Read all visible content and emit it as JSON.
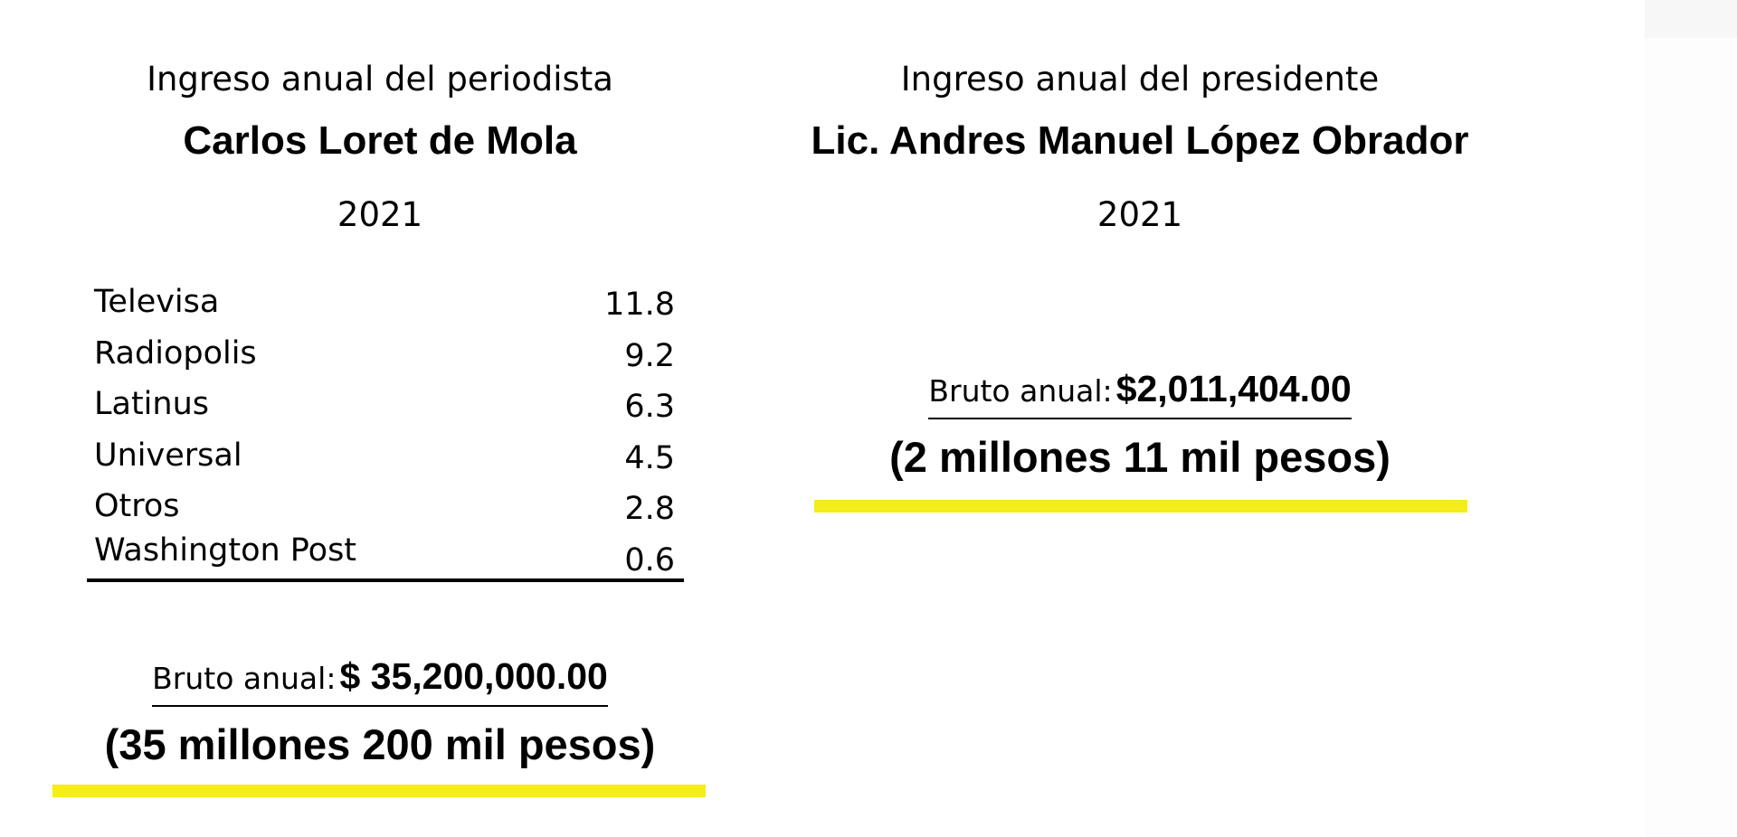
{
  "colors": {
    "highlight": "#f5ec1c",
    "text": "#000000",
    "background": "#ffffff"
  },
  "left": {
    "subtitle": "Ingreso anual del periodista",
    "name": "Carlos Loret de Mola",
    "year": "2021",
    "income_rows": [
      {
        "source": "Televisa",
        "amount": "11.8"
      },
      {
        "source": "Radiopolis",
        "amount": "9.2"
      },
      {
        "source": "Latinus",
        "amount": "6.3"
      },
      {
        "source": "Universal",
        "amount": "4.5"
      },
      {
        "source": "Otros",
        "amount": "2.8"
      },
      {
        "source": "Washington Post",
        "amount": "0.6"
      }
    ],
    "gross_label": "Bruto anual:",
    "gross_value": "$ 35,200,000.00",
    "gross_words": "(35 millones 200 mil pesos)"
  },
  "right": {
    "subtitle": "Ingreso anual del presidente",
    "name": "Lic. Andres Manuel López Obrador",
    "year": "2021",
    "gross_label": "Bruto anual:",
    "gross_value": "$2,011,404.00",
    "gross_words": "(2 millones 11 mil pesos)"
  }
}
